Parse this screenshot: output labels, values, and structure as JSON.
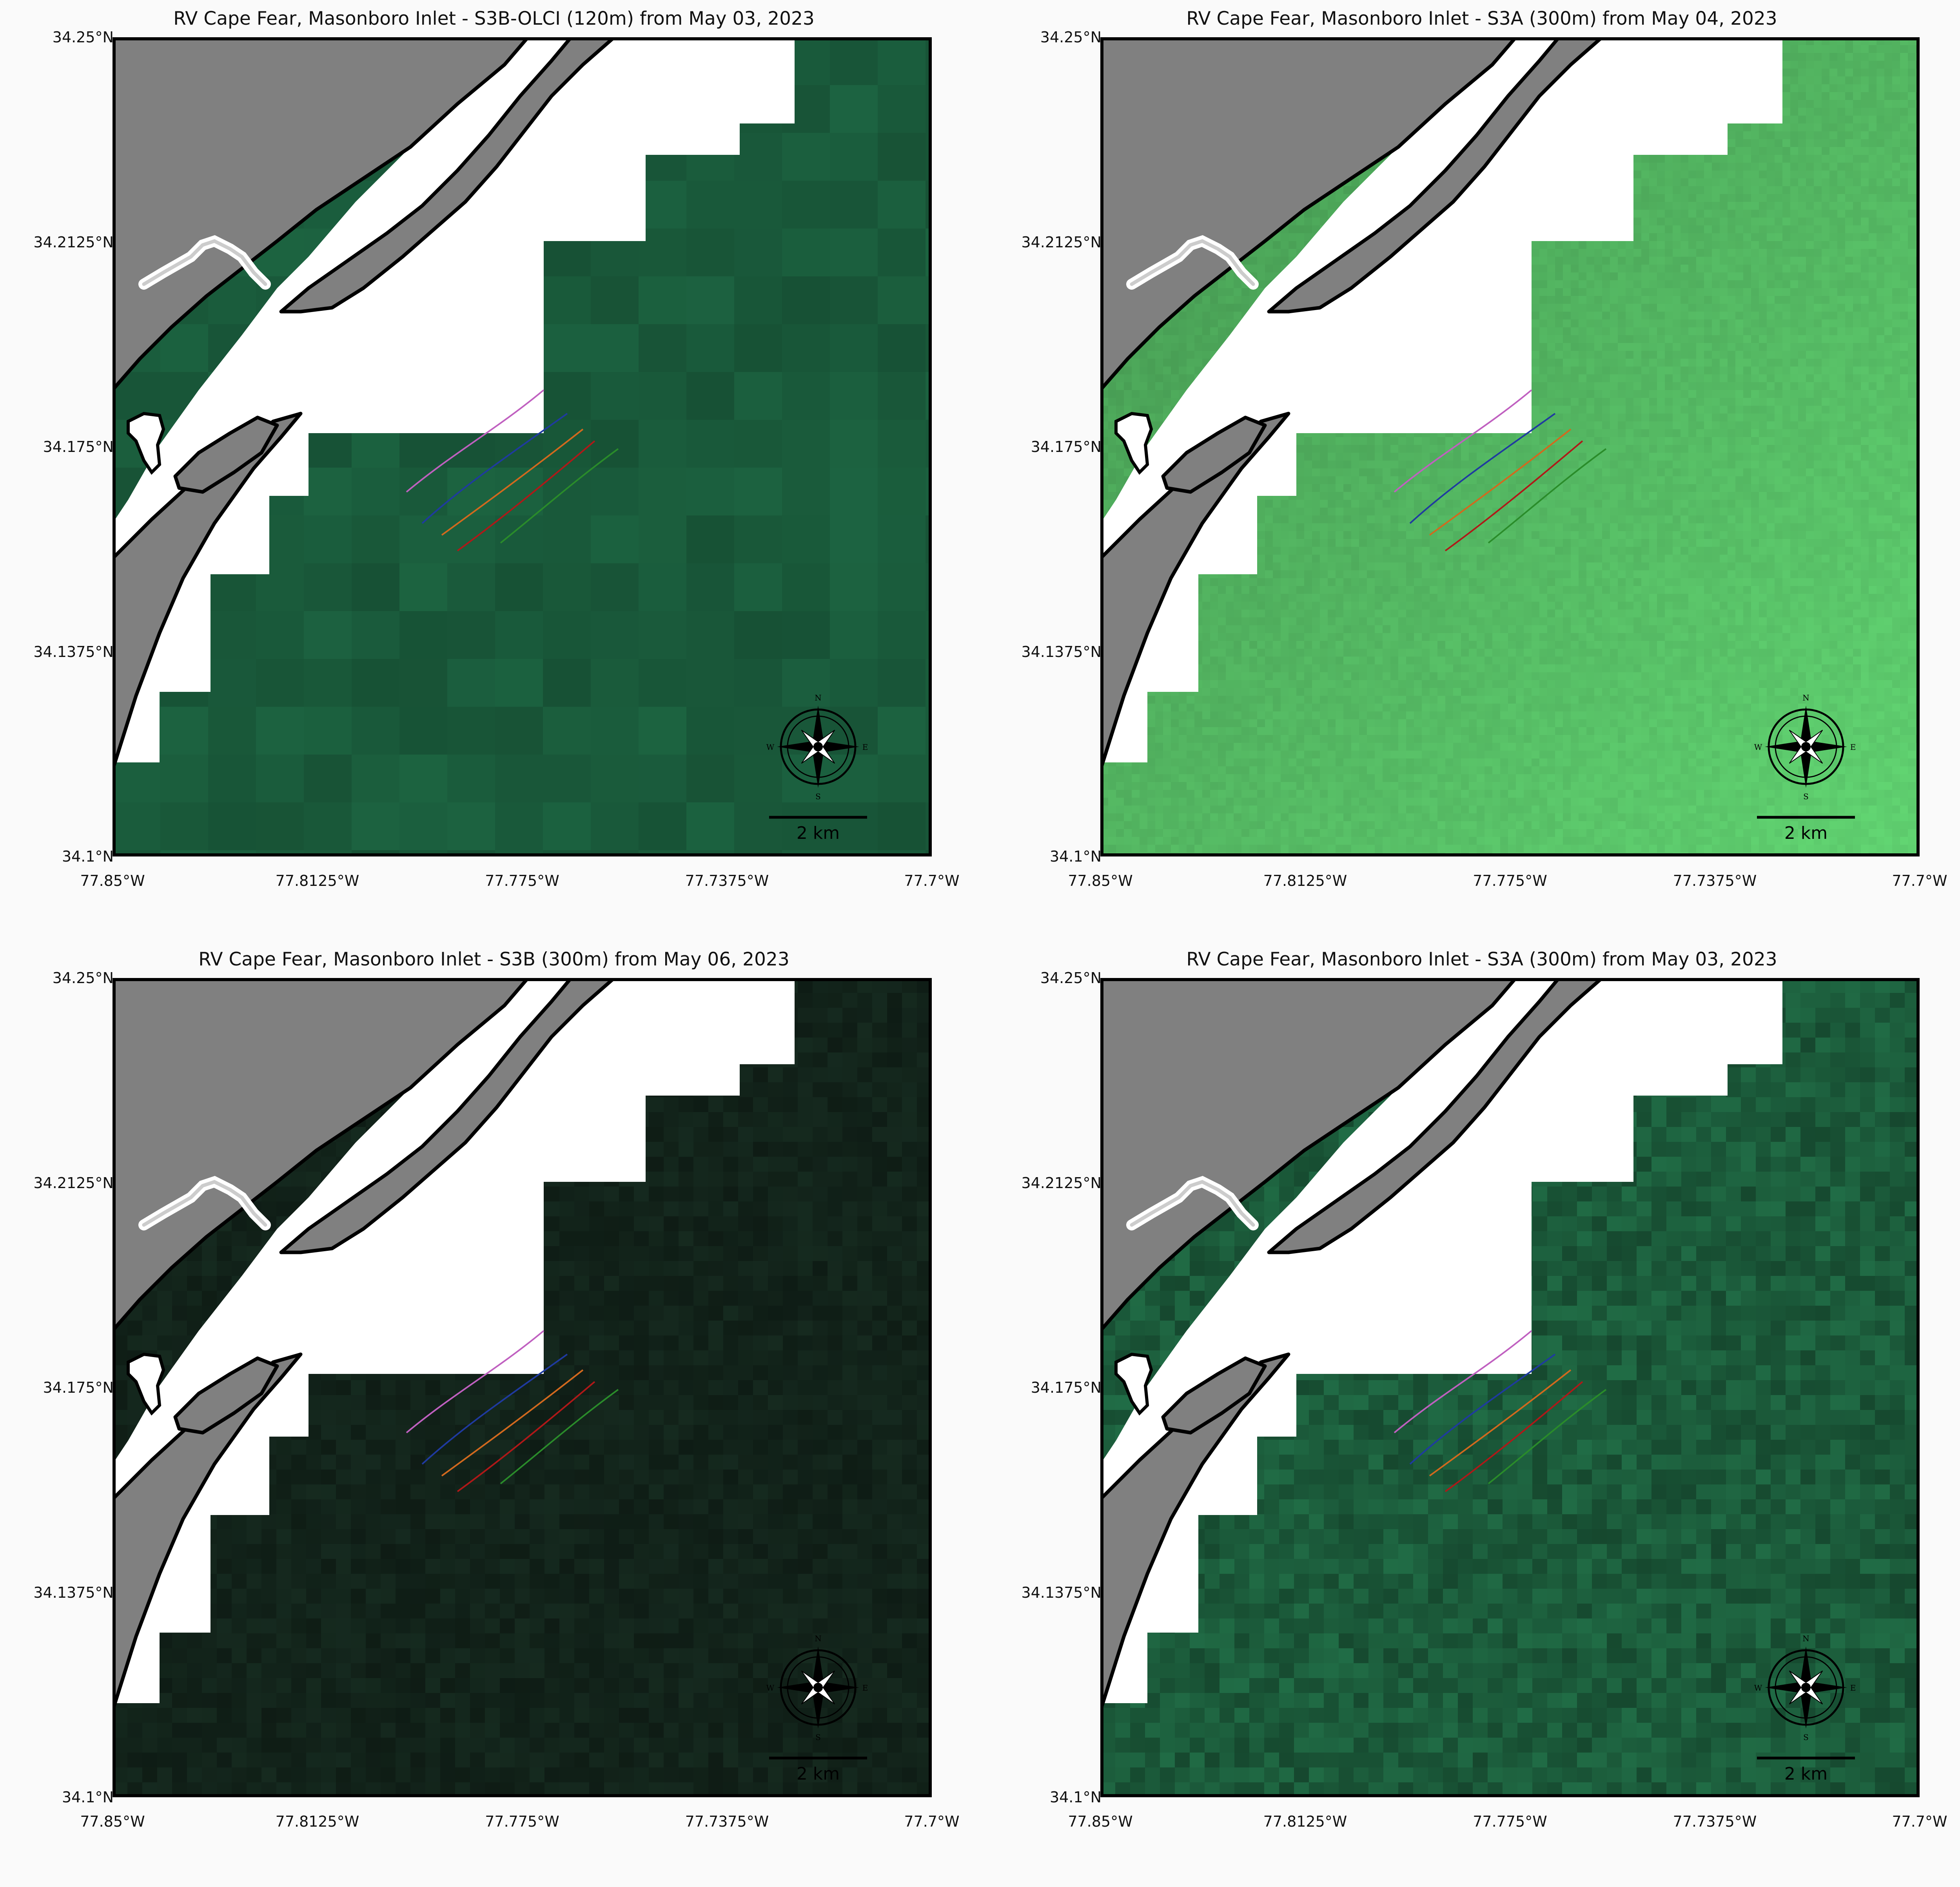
{
  "figure": {
    "panels": [
      {
        "title": "RV Cape Fear, Masonboro Inlet - S3B-OLCI (120m) from May 03, 2023",
        "water_color": "#1a5c3c",
        "water_mode": "blocks",
        "scale_bar_label": "2 km"
      },
      {
        "title": "RV Cape Fear, Masonboro Inlet - S3A (300m) from May 04, 2023",
        "water_color": "#4da85a",
        "water_mode": "gradient",
        "scale_bar_label": "2 km"
      },
      {
        "title": "RV Cape Fear, Masonboro Inlet - S3B (300m) from May 06, 2023",
        "water_color": "#12231a",
        "water_mode": "noise",
        "scale_bar_label": "2 km"
      },
      {
        "title": "RV Cape Fear, Masonboro Inlet - S3A (300m) from May 03, 2023",
        "water_color": "#1b5a3a",
        "water_mode": "noise",
        "scale_bar_label": "2 km"
      }
    ],
    "x_ticks": [
      "77.85°W",
      "77.8125°W",
      "77.775°W",
      "77.7375°W",
      "77.7°W"
    ],
    "y_ticks": [
      "34.25°N",
      "34.2125°N",
      "34.175°N",
      "34.1375°N",
      "34.1°N"
    ],
    "compass_letters": [
      "N",
      "E",
      "S",
      "W"
    ],
    "colors": {
      "land": "#808080",
      "coastline": "#000000",
      "no_data": "#ffffff",
      "transects": [
        "#c060c0",
        "#1f3aa0",
        "#d2691e",
        "#b01818",
        "#2a8c2a"
      ]
    },
    "transect_count": 5
  }
}
